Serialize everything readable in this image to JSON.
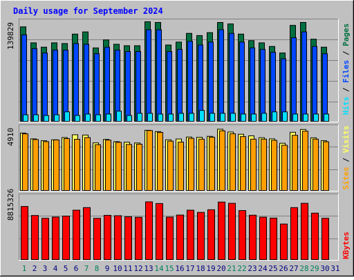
{
  "title": "Daily usage for September 2024",
  "colors": {
    "background": "#c0c0c0",
    "title": "#0000ff",
    "hits": "#006f3f",
    "files": "#0047ff",
    "pages": "#00e0ff",
    "visits": "#ffff60",
    "sites": "#ff9f00",
    "kbytes": "#ff0000",
    "weekend_label": "#00805c",
    "weekday_label": "#000080"
  },
  "chart_data": [
    {
      "type": "bar",
      "name": "hits-files-pages",
      "ymax_label": "139829",
      "ymax": 139829,
      "categories": [
        "1",
        "2",
        "3",
        "4",
        "5",
        "6",
        "7",
        "8",
        "9",
        "10",
        "11",
        "12",
        "13",
        "14",
        "15",
        "16",
        "17",
        "18",
        "19",
        "20",
        "21",
        "22",
        "23",
        "24",
        "25",
        "26",
        "27",
        "28",
        "29",
        "30",
        "31"
      ],
      "legend": [
        "Hits",
        "Files",
        "Pages"
      ],
      "series": [
        {
          "name": "Hits",
          "values": [
            131000,
            109000,
            103000,
            109000,
            108000,
            121000,
            124000,
            102000,
            113000,
            107000,
            105000,
            105000,
            138000,
            137000,
            106000,
            110000,
            122000,
            119000,
            123000,
            137000,
            135000,
            121000,
            112000,
            109000,
            104000,
            95000,
            133000,
            137000,
            114000,
            103000,
            0
          ]
        },
        {
          "name": "Files",
          "values": [
            120000,
            101000,
            95000,
            99000,
            99000,
            108000,
            107000,
            94000,
            103000,
            99000,
            97000,
            97000,
            127000,
            127000,
            97000,
            100000,
            111000,
            106000,
            110000,
            127000,
            122000,
            110000,
            102000,
            100000,
            96000,
            87000,
            116000,
            124000,
            104000,
            94000,
            0
          ]
        },
        {
          "name": "Pages",
          "values": [
            10000,
            10000,
            9000,
            10000,
            14000,
            9000,
            11000,
            10000,
            11000,
            15000,
            9000,
            12000,
            12000,
            11000,
            11000,
            12000,
            12000,
            16000,
            12000,
            12000,
            12000,
            11000,
            11000,
            12000,
            14000,
            14000,
            11000,
            11000,
            11000,
            11000,
            0
          ]
        }
      ]
    },
    {
      "type": "bar",
      "name": "visits-sites",
      "ymax_label": "4910",
      "ymax": 4910,
      "legend": [
        "Sites",
        "Visits"
      ],
      "series": [
        {
          "name": "Visits",
          "values": [
            4390,
            3950,
            3810,
            3880,
            4050,
            4260,
            4240,
            3650,
            3910,
            3740,
            3700,
            3640,
            4600,
            4500,
            3880,
            3940,
            4090,
            4070,
            4140,
            4680,
            4470,
            4300,
            4180,
            4040,
            3950,
            3620,
            4450,
            4660,
            4030,
            3810,
            0
          ]
        },
        {
          "name": "Sites",
          "values": [
            4330,
            3900,
            3740,
            3870,
            3970,
            3920,
            4050,
            3510,
            3860,
            3690,
            3530,
            3550,
            4580,
            4440,
            3780,
            3710,
            3990,
            3930,
            4080,
            4560,
            4340,
            4120,
            3930,
            3930,
            3840,
            3470,
            4220,
            4530,
            3930,
            3730,
            0
          ]
        }
      ]
    },
    {
      "type": "bar",
      "name": "kbytes",
      "ymax_label": "8815326",
      "ymax": 8815326,
      "legend": [
        "KBytes"
      ],
      "series": [
        {
          "name": "KBytes",
          "values": [
            7300000,
            6080000,
            5700000,
            5870000,
            6000000,
            6800000,
            7150000,
            5700000,
            6100000,
            6050000,
            5900000,
            5840000,
            7930000,
            7700000,
            5860000,
            6140000,
            6800000,
            6500000,
            6860000,
            7900000,
            7730000,
            6750000,
            6120000,
            5850000,
            5730000,
            4920000,
            7150000,
            7730000,
            6400000,
            5700000,
            0
          ]
        }
      ]
    }
  ]
}
